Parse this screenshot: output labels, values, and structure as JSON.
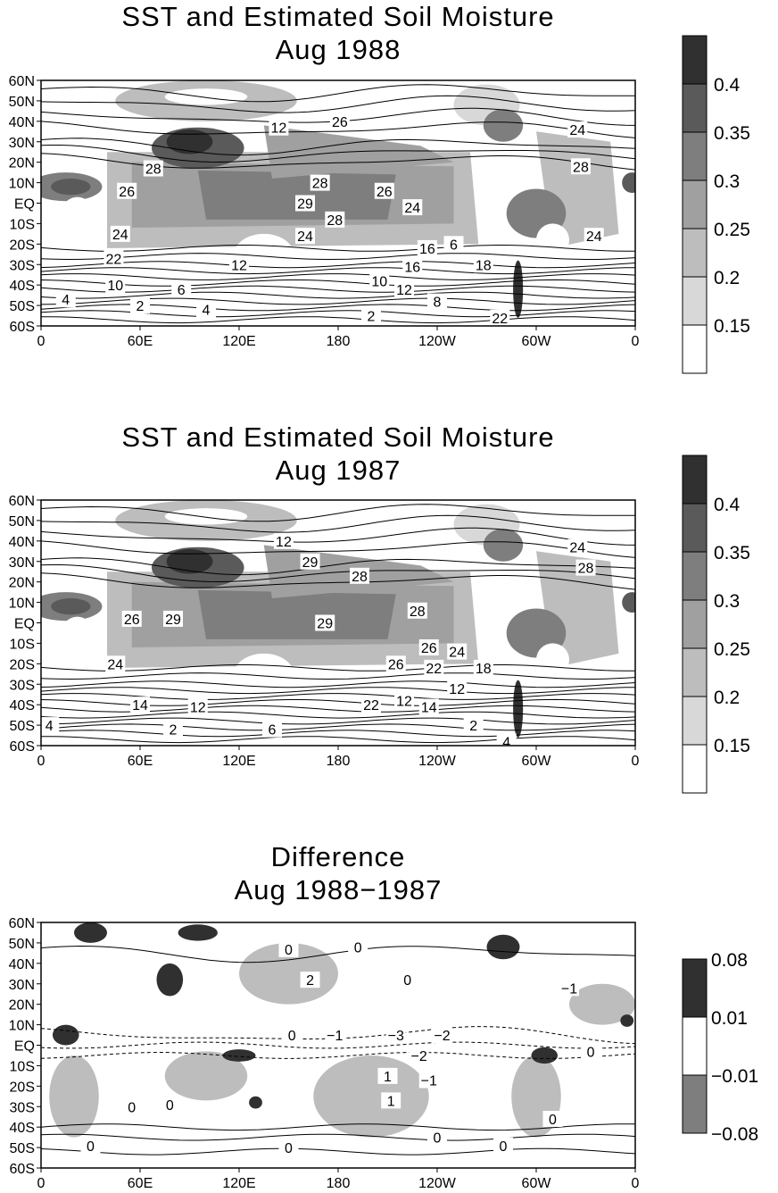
{
  "panels": [
    {
      "title": "SST and Estimated Soil Moisture",
      "subtitle": "Aug 1988",
      "colorbar": {
        "levels": [
          "0.4",
          "0.35",
          "0.3",
          "0.25",
          "0.2",
          "0.15"
        ],
        "colors": [
          "#303030",
          "#5a5a5a",
          "#7e7e7e",
          "#a0a0a0",
          "#bdbdbd",
          "#d8d8d8",
          "#ffffff"
        ]
      },
      "contour_labels": [
        "28",
        "26",
        "28",
        "29",
        "28",
        "26",
        "24",
        "24",
        "24",
        "22",
        "28",
        "24",
        "26",
        "12",
        "12",
        "16",
        "10",
        "4",
        "2",
        "6",
        "4",
        "10",
        "12",
        "8",
        "6",
        "16",
        "18",
        "22",
        "2",
        "24"
      ]
    },
    {
      "title": "SST and Estimated Soil Moisture",
      "subtitle": "Aug 1987",
      "colorbar": {
        "levels": [
          "0.4",
          "0.35",
          "0.3",
          "0.25",
          "0.2",
          "0.15"
        ],
        "colors": [
          "#303030",
          "#5a5a5a",
          "#7e7e7e",
          "#a0a0a0",
          "#bdbdbd",
          "#d8d8d8",
          "#ffffff"
        ]
      },
      "contour_labels": [
        "26",
        "29",
        "29",
        "28",
        "29",
        "28",
        "26",
        "24",
        "24",
        "28",
        "24",
        "22",
        "12",
        "14",
        "12",
        "14",
        "4",
        "2",
        "6",
        "4",
        "12",
        "12",
        "18",
        "26",
        "22",
        "2"
      ]
    },
    {
      "title": "Difference",
      "subtitle": "Aug 1988−1987",
      "colorbar": {
        "levels": [
          "0.08",
          "0.01",
          "−0.01",
          "−0.08"
        ],
        "colors": [
          "#303030",
          "#ffffff",
          "#7e7e7e"
        ]
      },
      "contour_labels": [
        "0",
        "1",
        "0",
        "2",
        "0",
        "0",
        "−1",
        "−3",
        "−2",
        "−2",
        "−1",
        "1",
        "0",
        "0",
        "0",
        "0",
        "0",
        "0",
        "0",
        "−1",
        "0"
      ]
    }
  ],
  "chart_data": {
    "type": "heatmap",
    "x_ticks": [
      "0",
      "60E",
      "120E",
      "180",
      "120W",
      "60W",
      "0"
    ],
    "y_ticks": [
      "60N",
      "50N",
      "40N",
      "30N",
      "20N",
      "10N",
      "EQ",
      "10S",
      "20S",
      "30S",
      "40S",
      "50S",
      "60S"
    ],
    "xlim": [
      0,
      360
    ],
    "ylim": [
      -60,
      60
    ]
  }
}
